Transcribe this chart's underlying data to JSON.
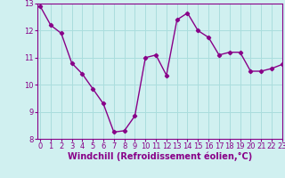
{
  "x": [
    0,
    1,
    2,
    3,
    4,
    5,
    6,
    7,
    8,
    9,
    10,
    11,
    12,
    13,
    14,
    15,
    16,
    17,
    18,
    19,
    20,
    21,
    22,
    23
  ],
  "y": [
    12.9,
    12.2,
    11.9,
    10.8,
    10.4,
    9.85,
    9.3,
    8.25,
    8.3,
    8.85,
    11.0,
    11.1,
    10.35,
    12.4,
    12.65,
    12.0,
    11.75,
    11.1,
    11.2,
    11.2,
    10.5,
    10.5,
    10.6,
    10.75
  ],
  "line_color": "#880088",
  "marker": "D",
  "marker_size": 2.2,
  "bg_color": "#d0f0f0",
  "grid_color": "#aadddd",
  "xlabel": "Windchill (Refroidissement éolien,°C)",
  "ylim": [
    8,
    13
  ],
  "xlim": [
    -0.3,
    23
  ],
  "yticks": [
    8,
    9,
    10,
    11,
    12,
    13
  ],
  "xticks": [
    0,
    1,
    2,
    3,
    4,
    5,
    6,
    7,
    8,
    9,
    10,
    11,
    12,
    13,
    14,
    15,
    16,
    17,
    18,
    19,
    20,
    21,
    22,
    23
  ],
  "tick_color": "#880088",
  "label_color": "#880088",
  "xlabel_fontsize": 7.0,
  "tick_fontsize": 6.0,
  "linewidth": 1.0
}
